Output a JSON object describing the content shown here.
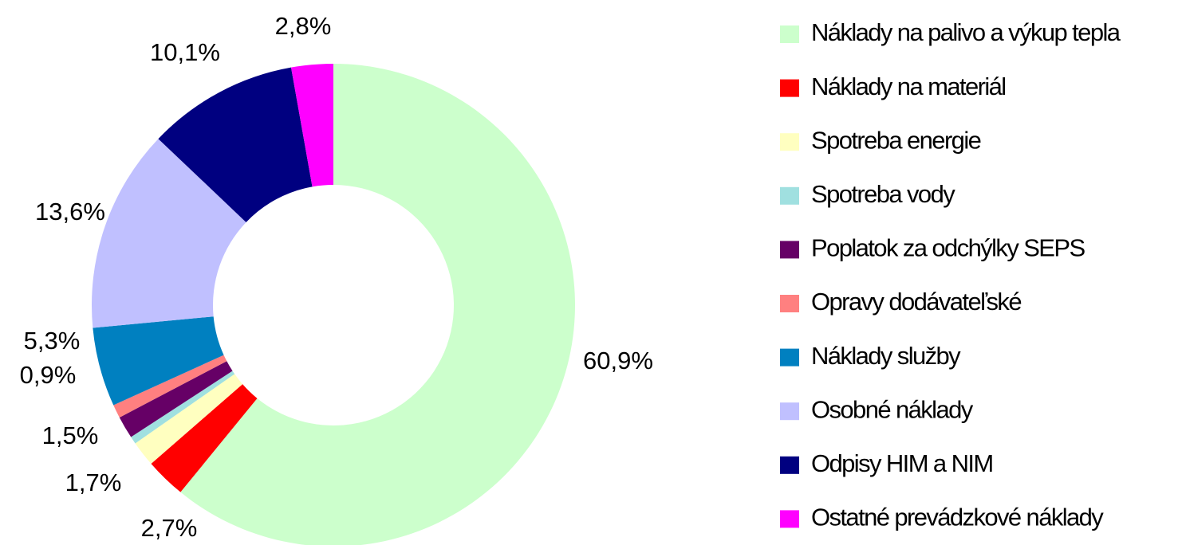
{
  "chart_data": {
    "type": "donut",
    "categories": [
      "Náklady na palivo a výkup tepla",
      "Náklady na materiál",
      "Spotreba energie",
      "Spotreba vody",
      "Poplatok za odchýlky SEPS",
      "Opravy dodávateľské",
      "Náklady služby",
      "Osobné náklady",
      "Odpisy HIM a NIM",
      "Ostatné prevádzkové náklady"
    ],
    "values": [
      60.9,
      2.7,
      1.7,
      0.5,
      1.5,
      0.9,
      5.3,
      13.6,
      10.1,
      2.8
    ],
    "value_labels": [
      "60,9%",
      "2,7%",
      "1,7%",
      null,
      "1,5%",
      "0,9%",
      "5,3%",
      "13,6%",
      "10,1%",
      "2,8%"
    ],
    "colors": [
      "#ccffcc",
      "#ff0000",
      "#ffffc0",
      "#a0e0e0",
      "#660066",
      "#ff8080",
      "#0080c0",
      "#c0c0ff",
      "#000080",
      "#ff00ff"
    ],
    "legend": "right"
  }
}
